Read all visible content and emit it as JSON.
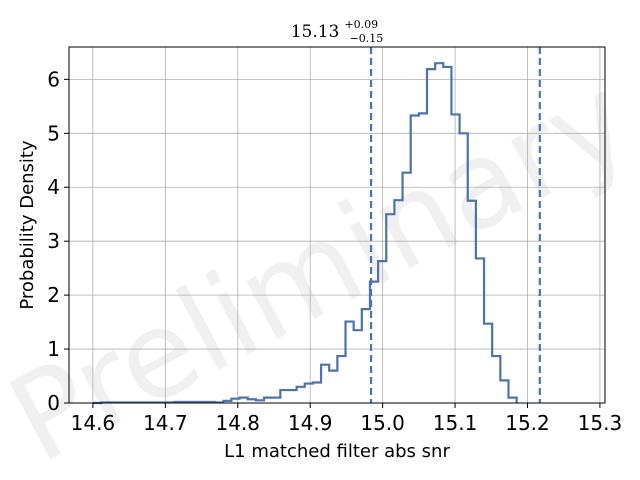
{
  "chart_data": {
    "type": "histogram",
    "title": {
      "main": "15.13",
      "sup": "+0.09",
      "sub": "−0.15"
    },
    "xlabel": "L1 matched filter abs snr",
    "ylabel": "Probability Density",
    "xlim": [
      14.567,
      15.307
    ],
    "ylim": [
      0,
      6.6
    ],
    "x_ticks": [
      "14.6",
      "14.7",
      "14.8",
      "14.9",
      "15.0",
      "15.1",
      "15.2",
      "15.3"
    ],
    "y_ticks": [
      "0",
      "1",
      "2",
      "3",
      "4",
      "5",
      "6"
    ],
    "grid": true,
    "watermark": "Preliminary",
    "line_color": "#4c72b0",
    "bin_start": 14.6,
    "bin_width": 0.01125,
    "densities": [
      0,
      0.01,
      0.01,
      0.01,
      0.01,
      0.01,
      0.01,
      0.01,
      0.01,
      0.01,
      0.02,
      0.02,
      0.02,
      0.02,
      0.02,
      0.01,
      0.04,
      0.08,
      0.1,
      0.07,
      0.05,
      0.1,
      0.1,
      0.24,
      0.24,
      0.3,
      0.36,
      0.38,
      0.71,
      0.6,
      0.87,
      1.51,
      1.35,
      1.74,
      2.25,
      2.63,
      3.5,
      3.76,
      4.27,
      5.33,
      5.37,
      6.19,
      6.3,
      6.23,
      5.35,
      5.0,
      3.75,
      2.68,
      1.47,
      0.87,
      0.42,
      0.1
    ],
    "vlines": [
      14.984,
      15.217
    ]
  }
}
